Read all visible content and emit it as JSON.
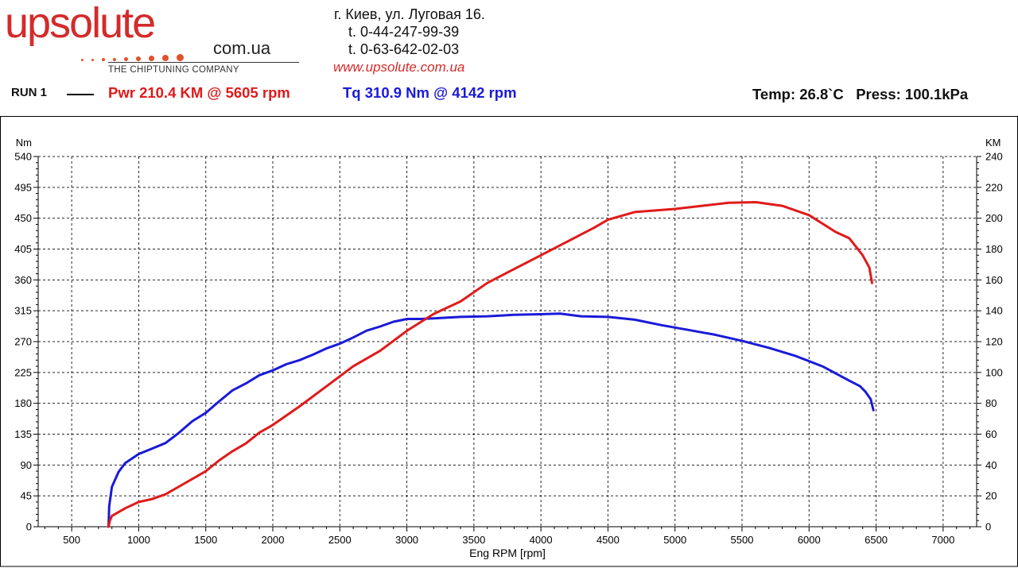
{
  "logo": {
    "main": "upsolute",
    "domain": "com.ua",
    "tagline": "THE CHIPTUNING COMPANY",
    "accent_color": "#d32b2b"
  },
  "contact": {
    "address": "г. Киев, ул. Луговая 16.",
    "phone1": "t. 0-44-247-99-39",
    "phone2": "t. 0-63-642-02-03",
    "website": "www.upsolute.com.ua"
  },
  "header": {
    "run_label": "RUN 1",
    "power_summary": "Pwr  210.4 KM @ 5605 rpm",
    "torque_summary": "Tq 310.9 Nm @ 4142 rpm",
    "conditions": "Temp: 26.8`C   Press: 100.1kPa",
    "power_color": "#e01a1a",
    "torque_color": "#1a1ad8"
  },
  "chart_data": {
    "type": "line",
    "xlabel": "Eng RPM [rpm]",
    "ylabel_left": "Nm",
    "ylabel_right": "KM",
    "xlim": [
      250,
      7250
    ],
    "ylim_left": [
      0,
      540
    ],
    "ylim_right": [
      0,
      240
    ],
    "xticks": [
      500,
      1000,
      1500,
      2000,
      2500,
      3000,
      3500,
      4000,
      4500,
      5000,
      5500,
      6000,
      6500,
      7000
    ],
    "yticks_left": [
      0,
      45,
      90,
      135,
      180,
      225,
      270,
      315,
      360,
      405,
      450,
      495,
      540
    ],
    "yticks_right": [
      0,
      20,
      40,
      60,
      80,
      100,
      120,
      140,
      160,
      180,
      200,
      220,
      240
    ],
    "grid": true,
    "series": [
      {
        "name": "Tq",
        "axis": "left",
        "unit": "Nm",
        "color": "#1a1ad8",
        "x": [
          775,
          780,
          800,
          850,
          900,
          1000,
          1100,
          1200,
          1300,
          1400,
          1500,
          1600,
          1700,
          1800,
          1900,
          2000,
          2100,
          2200,
          2300,
          2400,
          2500,
          2600,
          2700,
          2800,
          2900,
          3000,
          3100,
          3200,
          3400,
          3600,
          3800,
          4000,
          4142,
          4300,
          4500,
          4700,
          4900,
          5100,
          5300,
          5500,
          5700,
          5900,
          6100,
          6300,
          6380,
          6420,
          6460,
          6480
        ],
        "y": [
          0,
          30,
          58,
          80,
          93,
          106,
          114,
          122,
          137,
          154,
          166,
          183,
          199,
          209,
          221,
          228,
          237,
          243,
          251,
          260,
          267,
          276,
          286,
          292,
          299,
          303,
          303,
          304,
          306,
          307,
          309,
          310,
          310.9,
          307,
          306,
          302,
          294,
          287,
          280,
          271,
          261,
          249,
          234,
          213,
          205,
          197,
          186,
          170
        ]
      },
      {
        "name": "Pwr",
        "axis": "right",
        "unit": "KM",
        "color": "#e01a1a",
        "x": [
          775,
          785,
          800,
          900,
          1000,
          1100,
          1200,
          1300,
          1400,
          1500,
          1600,
          1700,
          1800,
          1900,
          2000,
          2200,
          2400,
          2600,
          2800,
          3000,
          3200,
          3400,
          3600,
          3800,
          4000,
          4200,
          4400,
          4500,
          4700,
          5000,
          5200,
          5400,
          5605,
          5800,
          6000,
          6200,
          6300,
          6400,
          6450,
          6470
        ],
        "y": [
          0,
          4,
          7,
          12,
          16,
          18,
          21,
          26,
          31,
          36,
          43,
          49,
          54,
          61,
          66,
          78,
          91,
          104,
          114,
          127,
          138,
          146,
          158,
          167,
          176,
          185,
          194,
          199,
          204,
          206,
          208,
          210,
          210.4,
          208,
          202,
          191,
          187,
          176,
          168,
          158
        ]
      }
    ]
  }
}
